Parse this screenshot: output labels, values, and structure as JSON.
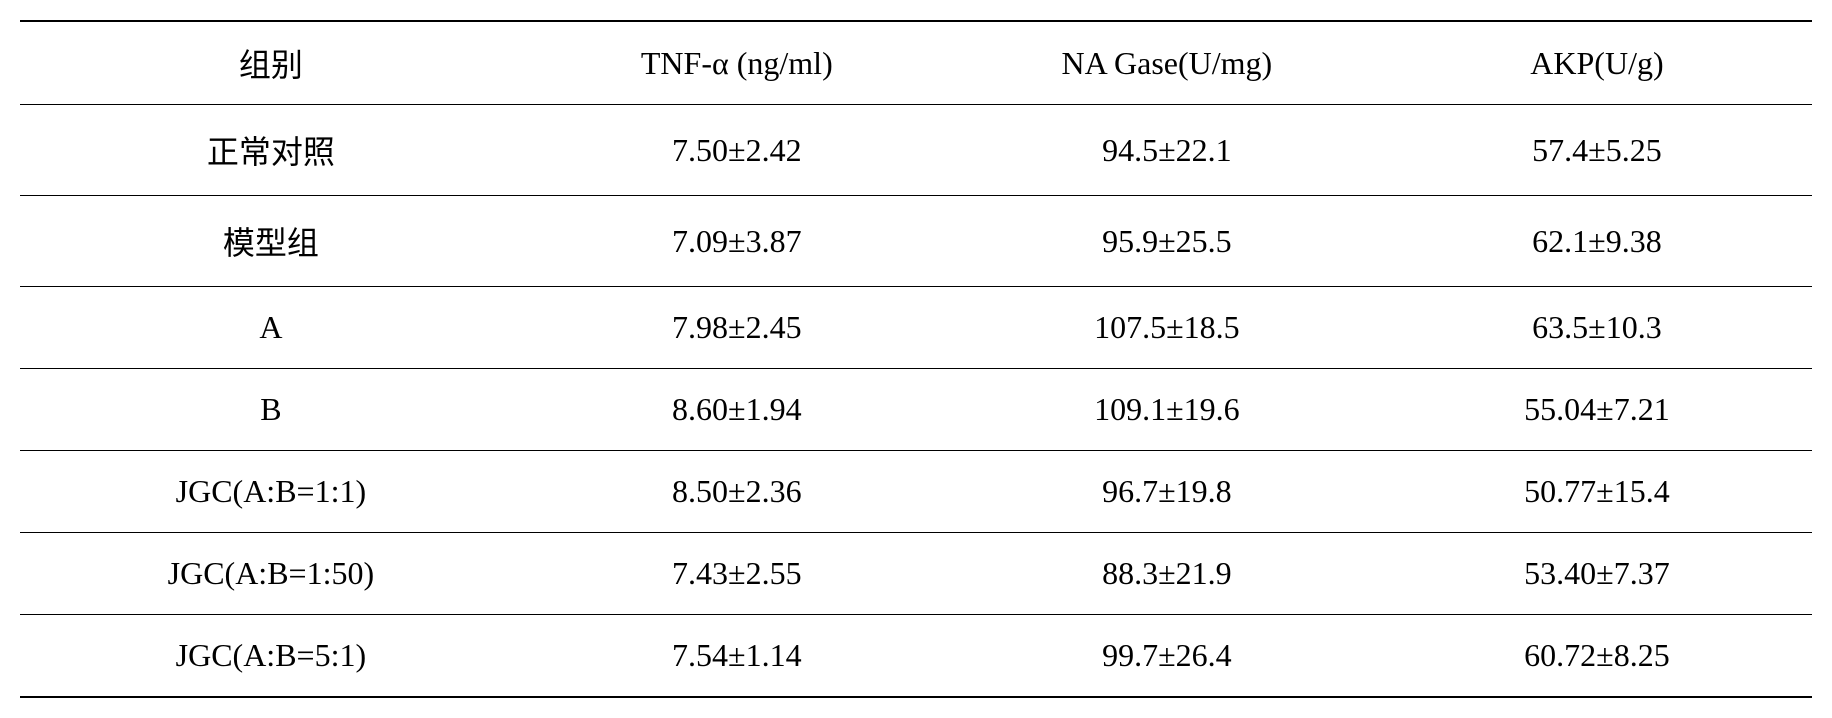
{
  "table": {
    "columns": [
      "组别",
      "TNF-α (ng/ml)",
      "NA Gase(U/mg)",
      "AKP(U/g)"
    ],
    "rows": [
      [
        "正常对照",
        "7.50±2.42",
        "94.5±22.1",
        "57.4±5.25"
      ],
      [
        "模型组",
        "7.09±3.87",
        "95.9±25.5",
        "62.1±9.38"
      ],
      [
        "A",
        "7.98±2.45",
        "107.5±18.5",
        "63.5±10.3"
      ],
      [
        "B",
        "8.60±1.94",
        "109.1±19.6",
        "55.04±7.21"
      ],
      [
        "JGC(A:B=1:1)",
        "8.50±2.36",
        "96.7±19.8",
        "50.77±15.4"
      ],
      [
        "JGC(A:B=1:50)",
        "7.43±2.55",
        "88.3±21.9",
        "53.40±7.37"
      ],
      [
        "JGC(A:B=5:1)",
        "7.54±1.14",
        "99.7±26.4",
        "60.72±8.25"
      ]
    ],
    "border_color": "#000000",
    "background_color": "#ffffff",
    "text_color": "#000000",
    "header_fontsize": 32,
    "body_fontsize": 32,
    "top_border_width": 2,
    "bottom_border_width": 2,
    "row_border_width": 1
  }
}
